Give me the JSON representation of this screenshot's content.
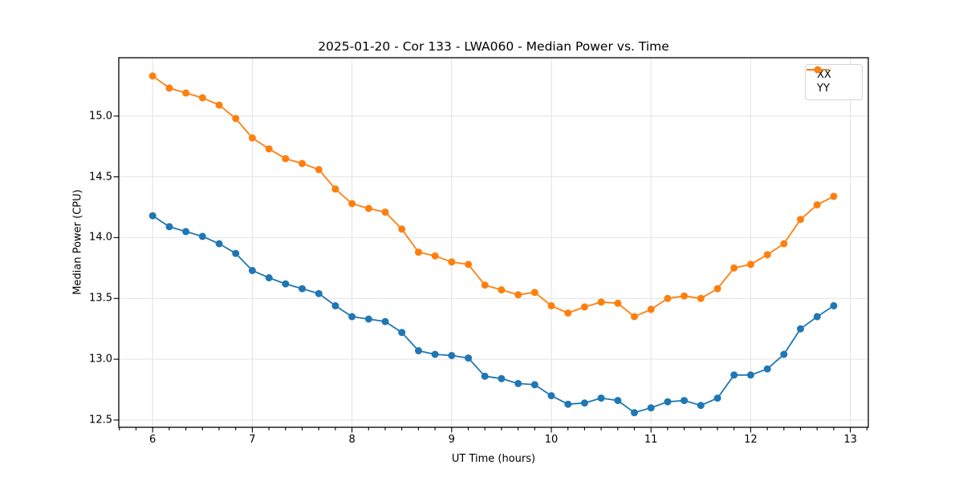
{
  "chart_data": {
    "type": "line",
    "title": "2025-01-20 - Cor 133 - LWA060 - Median Power vs. Time",
    "xlabel": "UT Time (hours)",
    "ylabel": "Median Power (CPU)",
    "xlim": [
      5.66,
      13.18
    ],
    "ylim": [
      12.44,
      15.48
    ],
    "xticks": [
      6,
      7,
      8,
      9,
      10,
      11,
      12,
      13
    ],
    "yticks": [
      12.5,
      13.0,
      13.5,
      14.0,
      14.5,
      15.0
    ],
    "x_minor_tick_step": 0.166667,
    "grid": true,
    "legend_position": "upper right",
    "x": [
      6.0,
      6.167,
      6.333,
      6.5,
      6.667,
      6.833,
      7.0,
      7.167,
      7.333,
      7.5,
      7.667,
      7.833,
      8.0,
      8.167,
      8.333,
      8.5,
      8.667,
      8.833,
      9.0,
      9.167,
      9.333,
      9.5,
      9.667,
      9.833,
      10.0,
      10.167,
      10.333,
      10.5,
      10.667,
      10.833,
      11.0,
      11.167,
      11.333,
      11.5,
      11.667,
      11.833,
      12.0,
      12.167,
      12.333,
      12.5,
      12.667,
      12.833
    ],
    "series": [
      {
        "name": "XX",
        "color": "#1f77b4",
        "marker": "circle",
        "values": [
          14.18,
          14.09,
          14.05,
          14.01,
          13.95,
          13.87,
          13.73,
          13.67,
          13.62,
          13.58,
          13.54,
          13.44,
          13.35,
          13.33,
          13.31,
          13.22,
          13.07,
          13.04,
          13.03,
          13.01,
          12.86,
          12.84,
          12.8,
          12.79,
          12.7,
          12.63,
          12.64,
          12.68,
          12.66,
          12.56,
          12.6,
          12.65,
          12.66,
          12.62,
          12.68,
          12.87,
          12.87,
          12.92,
          13.04,
          13.25,
          13.35,
          13.44
        ]
      },
      {
        "name": "YY",
        "color": "#ff7f0e",
        "marker": "circle",
        "values": [
          15.33,
          15.23,
          15.19,
          15.15,
          15.09,
          14.98,
          14.82,
          14.73,
          14.65,
          14.61,
          14.56,
          14.4,
          14.28,
          14.24,
          14.21,
          14.07,
          13.88,
          13.85,
          13.8,
          13.78,
          13.61,
          13.57,
          13.53,
          13.55,
          13.44,
          13.38,
          13.43,
          13.47,
          13.46,
          13.35,
          13.41,
          13.5,
          13.52,
          13.5,
          13.58,
          13.75,
          13.78,
          13.86,
          13.95,
          14.15,
          14.27,
          14.34
        ]
      }
    ],
    "axis_color": "#000000",
    "grid_color": "#e2e2e2",
    "background_color": "#ffffff"
  }
}
